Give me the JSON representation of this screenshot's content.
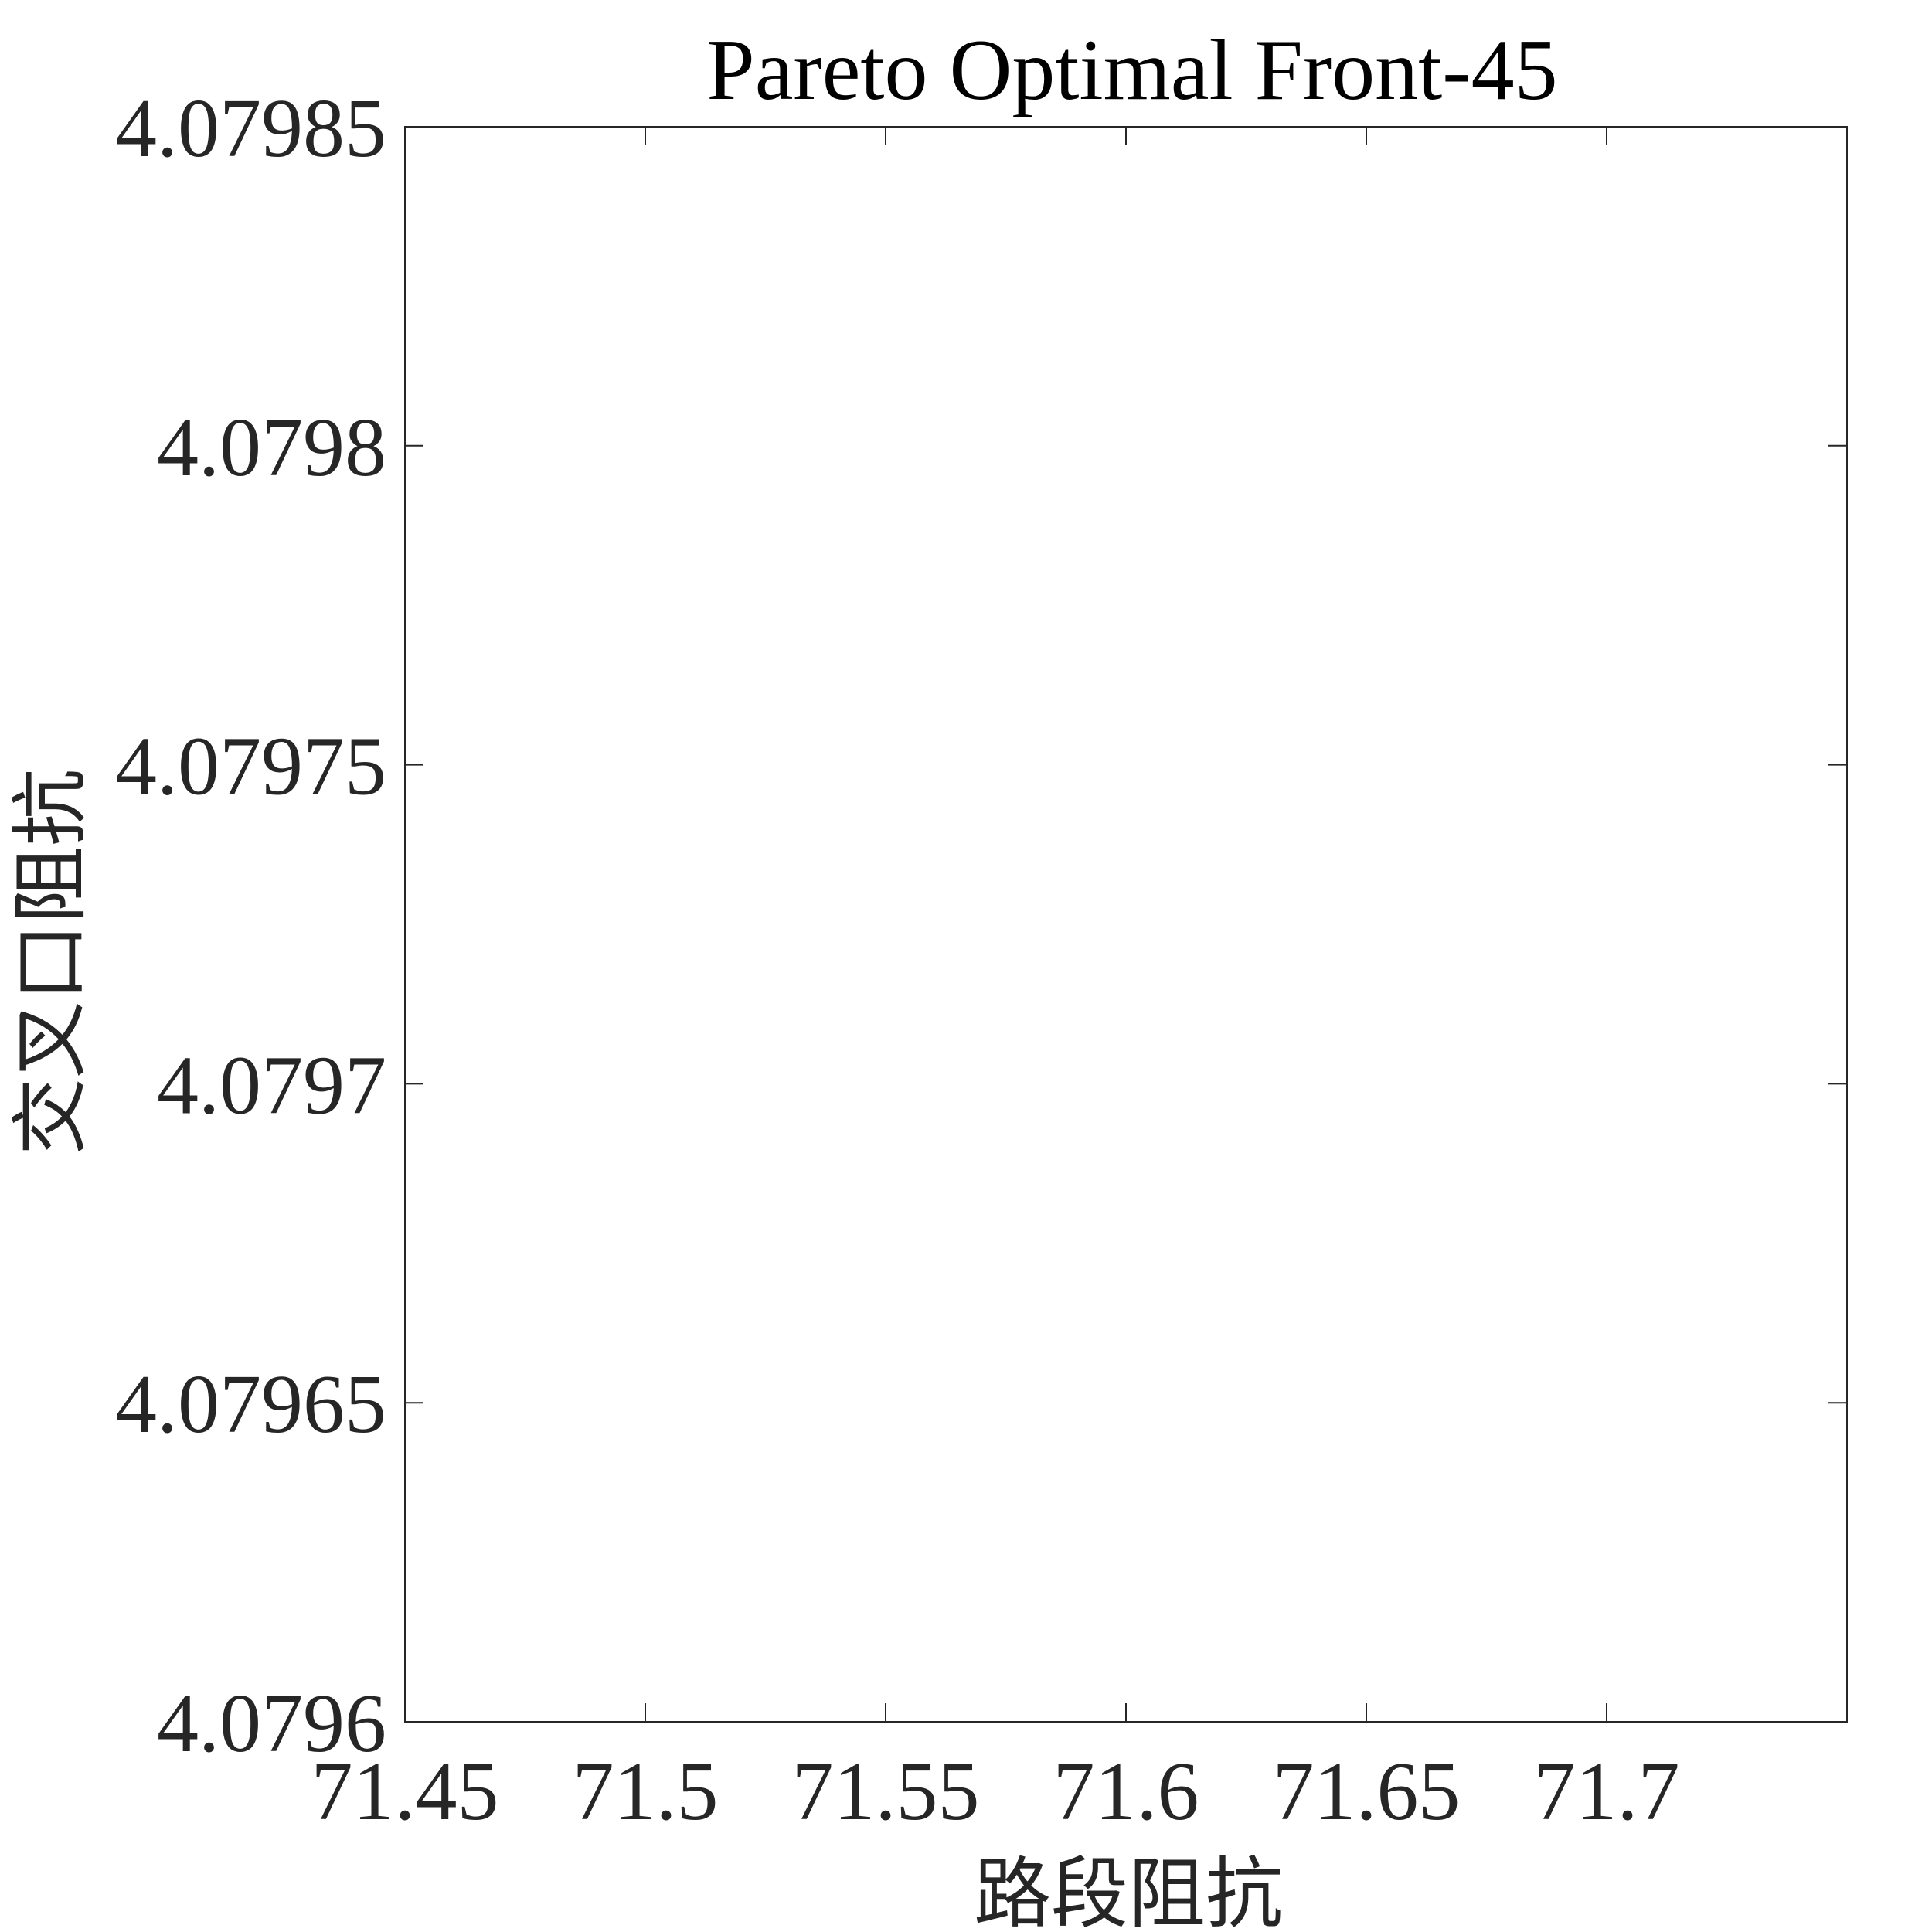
{
  "chart_data": {
    "type": "scatter",
    "title": "Pareto Optimal Front-45",
    "xlabel": "路段阻抗",
    "ylabel": "交叉口阻抗",
    "xlim": [
      71.45,
      71.75
    ],
    "ylim": [
      4.0796,
      4.07985
    ],
    "x_ticks": [
      71.45,
      71.5,
      71.55,
      71.6,
      71.65,
      71.7
    ],
    "x_tick_labels": [
      "71.45",
      "71.5",
      "71.55",
      "71.6",
      "71.65",
      "71.7"
    ],
    "y_ticks": [
      4.0796,
      4.07965,
      4.0797,
      4.07975,
      4.0798,
      4.07985
    ],
    "y_tick_labels": [
      "4.0796",
      "4.07965",
      "4.0797",
      "4.07975",
      "4.0798",
      "4.07985"
    ],
    "grid": false,
    "series": [
      {
        "x": [],
        "y": []
      }
    ],
    "colors": {
      "axis": "#262626",
      "background": "#ffffff"
    }
  }
}
